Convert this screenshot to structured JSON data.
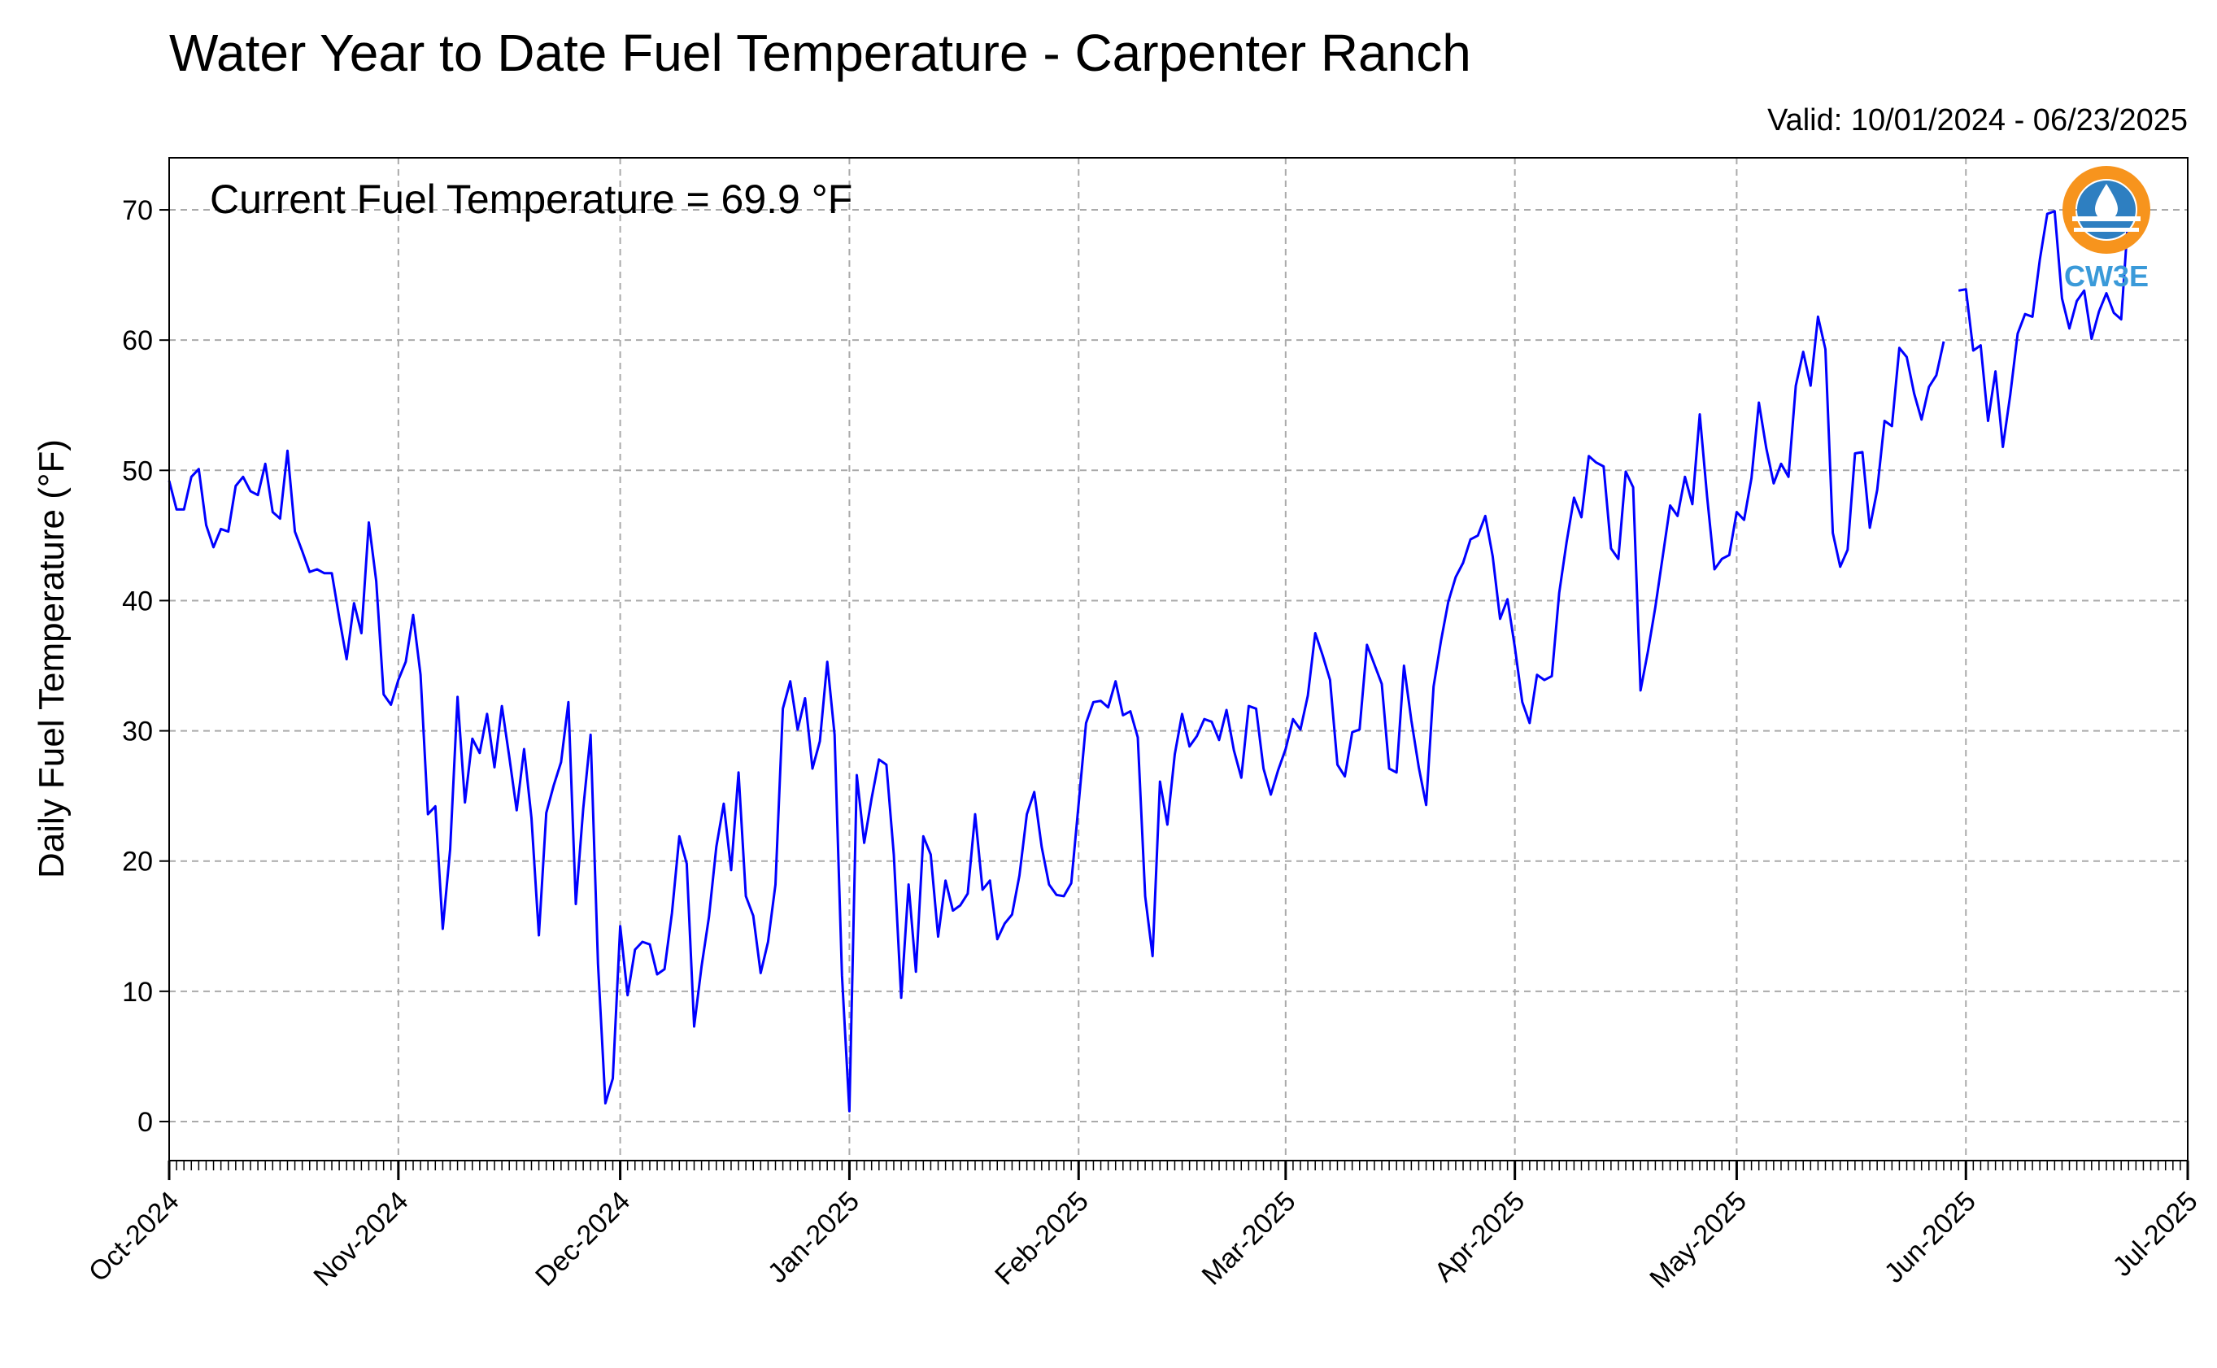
{
  "title": "Water Year to Date Fuel Temperature - Carpenter Ranch",
  "valid_text": "Valid: 10/01/2024 - 06/23/2025",
  "annotation": "Current Fuel Temperature = 69.9 °F",
  "logo": {
    "text": "CW3E",
    "icon": "water-drop-logo",
    "colors": {
      "ring": "#F7941D",
      "water": "#2E7FC1",
      "text": "#3A9AD9"
    }
  },
  "chart_data": {
    "type": "line",
    "title": "Water Year to Date Fuel Temperature - Carpenter Ranch",
    "xlabel": "",
    "ylabel": "Daily Fuel Temperature (°F)",
    "ylim": [
      -3,
      74
    ],
    "xlim": [
      "2024-10-01",
      "2025-07-01"
    ],
    "yticks": [
      0,
      10,
      20,
      30,
      40,
      50,
      60,
      70
    ],
    "xtick_labels": [
      "Oct-2024",
      "Nov-2024",
      "Dec-2024",
      "Jan-2025",
      "Feb-2025",
      "Mar-2025",
      "Apr-2025",
      "May-2025",
      "Jun-2025",
      "Jul-2025"
    ],
    "grid": true,
    "line_color": "#0000FF",
    "series": [
      {
        "start_date": "2024-10-01",
        "values": [
          49.2,
          47.0,
          47.0,
          49.5,
          50.1,
          45.8,
          44.1,
          45.5,
          45.3,
          48.8,
          49.5,
          48.4,
          48.1,
          50.5,
          46.8,
          46.3,
          51.5,
          45.3,
          43.8,
          42.2,
          42.4,
          42.1,
          42.1,
          38.7,
          35.5,
          39.8,
          37.5,
          46.0,
          41.5,
          32.8,
          32.0,
          33.9,
          35.3,
          38.9,
          34.3,
          23.6,
          24.2,
          14.8,
          20.9,
          32.6,
          24.5,
          29.4,
          28.3,
          31.3,
          27.2,
          31.9,
          28.0,
          23.9,
          28.6,
          23.3,
          14.3,
          23.7,
          25.8,
          27.6,
          32.2,
          16.7,
          24.0,
          29.7,
          12.1,
          1.4,
          3.3,
          15.0,
          9.7,
          13.2,
          13.8,
          13.6,
          11.3,
          11.7,
          16.0,
          21.9,
          19.8,
          7.3,
          11.9,
          15.7,
          21.1,
          24.4,
          19.3,
          26.8,
          17.3,
          15.8,
          11.4,
          13.8,
          18.2,
          31.7,
          33.8,
          30.1,
          32.5,
          27.1,
          29.2,
          35.3,
          29.7,
          11.2,
          0.8,
          26.6,
          21.4,
          24.8,
          27.8,
          27.4,
          20.5,
          9.5,
          18.2,
          11.5,
          21.9,
          20.5,
          14.2,
          18.5,
          16.2,
          16.6,
          17.5,
          23.6,
          17.8,
          18.5,
          14.0,
          15.2,
          15.9,
          18.9,
          23.6,
          25.3,
          21.1,
          18.2,
          17.4,
          17.3,
          18.3,
          24.4,
          30.6,
          32.2,
          32.3,
          31.8,
          33.8,
          31.2,
          31.5,
          29.5,
          17.3,
          12.7,
          26.1,
          22.8,
          28.2,
          31.3,
          28.8,
          29.6,
          30.9,
          30.7,
          29.3,
          31.6,
          28.5,
          26.4,
          31.9,
          31.7,
          27.1,
          25.1,
          27.0,
          28.6,
          30.9,
          30.1,
          32.7,
          37.5,
          35.8,
          33.9,
          27.4,
          26.5,
          29.9,
          30.1,
          36.6,
          35.1,
          33.6,
          27.1,
          26.8,
          35.0,
          30.8,
          27.2,
          24.3,
          33.4,
          36.9,
          39.9,
          41.8,
          42.9,
          44.7,
          45.0,
          46.5,
          43.4,
          38.6,
          40.1,
          36.4,
          32.2,
          30.6,
          34.3,
          33.9,
          34.2,
          40.6,
          44.5,
          47.9,
          46.4,
          51.1,
          50.6,
          50.3,
          44.0,
          43.2,
          49.9,
          48.7,
          33.1,
          36.1,
          39.5,
          43.4,
          47.3,
          46.5,
          49.5,
          47.4,
          54.3,
          48.0,
          42.4,
          43.2,
          43.5,
          46.8,
          46.2,
          49.4,
          55.2,
          51.7,
          49.0,
          50.5,
          49.5,
          56.5,
          59.1,
          56.5,
          61.8,
          59.3,
          45.2,
          42.6,
          43.9,
          51.3,
          51.4,
          45.6,
          48.5,
          53.8,
          53.4,
          59.4,
          58.7,
          55.9,
          53.9,
          56.4,
          57.3,
          59.9,
          null,
          63.8,
          63.9,
          59.2,
          59.6,
          53.8,
          57.6,
          51.8,
          55.8,
          60.5,
          62.0,
          61.8,
          66.2,
          69.7,
          69.9,
          63.2,
          60.9,
          63.0,
          63.8,
          60.1,
          62.2,
          63.6,
          62.1,
          61.6,
          69.9
        ]
      }
    ]
  }
}
